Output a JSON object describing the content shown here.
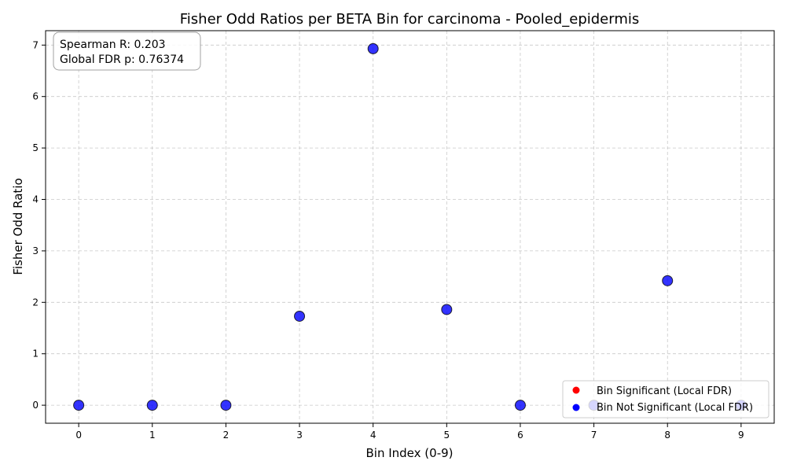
{
  "chart_data": {
    "type": "scatter",
    "title": "Fisher Odd Ratios per BETA Bin for carcinoma - Pooled_epidermis",
    "xlabel": "Bin Index (0-9)",
    "ylabel": "Fisher Odd Ratio",
    "xlim": [
      -0.45,
      9.45
    ],
    "ylim": [
      -0.35,
      7.28
    ],
    "xticks": [
      0,
      1,
      2,
      3,
      4,
      5,
      6,
      7,
      8,
      9
    ],
    "yticks": [
      0,
      1,
      2,
      3,
      4,
      5,
      6,
      7
    ],
    "grid": true,
    "grid_style": "dashed",
    "series": [
      {
        "name": "Bin Significant (Local FDR)",
        "color": "#ff0000",
        "points": []
      },
      {
        "name": "Bin Not Significant (Local FDR)",
        "color": "#0000ff",
        "points": [
          {
            "x": 0,
            "y": 0.0
          },
          {
            "x": 1,
            "y": 0.0
          },
          {
            "x": 2,
            "y": 0.0
          },
          {
            "x": 3,
            "y": 1.73
          },
          {
            "x": 4,
            "y": 6.93
          },
          {
            "x": 5,
            "y": 1.86
          },
          {
            "x": 6,
            "y": 0.0
          },
          {
            "x": 7,
            "y": 0.0
          },
          {
            "x": 8,
            "y": 2.42
          },
          {
            "x": 9,
            "y": 0.0
          }
        ]
      }
    ],
    "stats_box": {
      "line1": "Spearman R: 0.203",
      "line2": "Global FDR p: 0.76374"
    },
    "legend_position": "lower-right"
  }
}
